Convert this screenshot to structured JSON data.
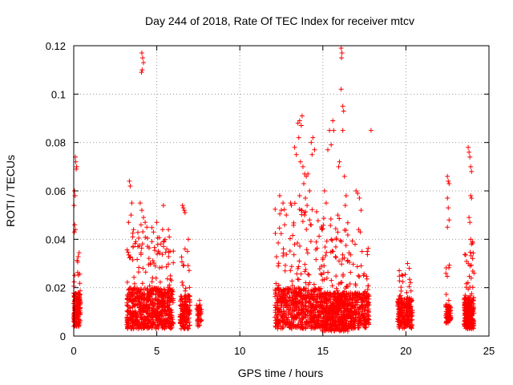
{
  "chart_data": {
    "type": "scatter",
    "title": "Day 244 of 2018, Rate Of TEC Index for receiver mtcv",
    "xlabel": "GPS time / hours",
    "ylabel": "ROTI / TECUs",
    "xlim": [
      0,
      25
    ],
    "ylim": [
      0,
      0.12
    ],
    "xticks": [
      0,
      5,
      10,
      15,
      20,
      25
    ],
    "xtick_labels": [
      "0",
      "5",
      "10",
      "15",
      "20",
      "25"
    ],
    "yticks": [
      0,
      0.02,
      0.04,
      0.06,
      0.08,
      0.1,
      0.12
    ],
    "ytick_labels": [
      "0",
      "0.02",
      "0.04",
      "0.06",
      "0.08",
      "0.1",
      "0.12"
    ],
    "grid": true,
    "marker": "+",
    "color": "#ff0000",
    "series": [
      {
        "name": "ROTI",
        "clusters": [
          {
            "start": 0.0,
            "end": 0.4,
            "count": 170,
            "base_min": 0.004,
            "base_max": 0.018,
            "scatter_max": 0.035
          },
          {
            "start": 3.2,
            "end": 6.0,
            "count": 750,
            "base_min": 0.003,
            "base_max": 0.02,
            "scatter_max": 0.045
          },
          {
            "start": 6.4,
            "end": 7.0,
            "count": 170,
            "base_min": 0.003,
            "base_max": 0.017,
            "scatter_max": 0.035
          },
          {
            "start": 7.4,
            "end": 7.7,
            "count": 45,
            "base_min": 0.004,
            "base_max": 0.013,
            "scatter_max": 0.015
          },
          {
            "start": 12.1,
            "end": 14.9,
            "count": 650,
            "base_min": 0.003,
            "base_max": 0.02,
            "scatter_max": 0.055
          },
          {
            "start": 14.9,
            "end": 16.6,
            "count": 550,
            "base_min": 0.002,
            "base_max": 0.018,
            "scatter_max": 0.05
          },
          {
            "start": 16.6,
            "end": 17.8,
            "count": 260,
            "base_min": 0.003,
            "base_max": 0.018,
            "scatter_max": 0.04
          },
          {
            "start": 19.5,
            "end": 20.4,
            "count": 230,
            "base_min": 0.003,
            "base_max": 0.016,
            "scatter_max": 0.028
          },
          {
            "start": 22.4,
            "end": 22.7,
            "count": 70,
            "base_min": 0.005,
            "base_max": 0.013,
            "scatter_max": 0.03
          },
          {
            "start": 23.5,
            "end": 24.1,
            "count": 260,
            "base_min": 0.003,
            "base_max": 0.016,
            "scatter_max": 0.04
          }
        ],
        "points": [
          [
            0.1,
            0.074
          ],
          [
            0.12,
            0.072
          ],
          [
            0.18,
            0.07
          ],
          [
            0.15,
            0.069
          ],
          [
            0.05,
            0.06
          ],
          [
            0.08,
            0.058
          ],
          [
            0.02,
            0.054
          ],
          [
            0.06,
            0.046
          ],
          [
            0.04,
            0.043
          ],
          [
            0.1,
            0.044
          ],
          [
            3.35,
            0.064
          ],
          [
            3.4,
            0.062
          ],
          [
            3.5,
            0.055
          ],
          [
            3.45,
            0.05
          ],
          [
            3.3,
            0.047
          ],
          [
            3.6,
            0.044
          ],
          [
            3.55,
            0.041
          ],
          [
            4.1,
            0.117
          ],
          [
            4.15,
            0.115
          ],
          [
            4.2,
            0.113
          ],
          [
            4.12,
            0.11
          ],
          [
            4.08,
            0.109
          ],
          [
            4.0,
            0.055
          ],
          [
            4.1,
            0.052
          ],
          [
            4.2,
            0.049
          ],
          [
            4.3,
            0.047
          ],
          [
            4.05,
            0.046
          ],
          [
            4.4,
            0.045
          ],
          [
            5.0,
            0.047
          ],
          [
            5.4,
            0.054
          ],
          [
            5.35,
            0.044
          ],
          [
            5.5,
            0.04
          ],
          [
            5.7,
            0.044
          ],
          [
            5.75,
            0.041
          ],
          [
            5.6,
            0.036
          ],
          [
            5.8,
            0.035
          ],
          [
            4.8,
            0.043
          ],
          [
            6.55,
            0.054
          ],
          [
            6.6,
            0.053
          ],
          [
            6.65,
            0.052
          ],
          [
            6.7,
            0.051
          ],
          [
            6.9,
            0.04
          ],
          [
            6.7,
            0.036
          ],
          [
            6.85,
            0.035
          ],
          [
            12.4,
            0.058
          ],
          [
            12.6,
            0.055
          ],
          [
            12.5,
            0.052
          ],
          [
            12.8,
            0.05
          ],
          [
            12.7,
            0.046
          ],
          [
            13.3,
            0.078
          ],
          [
            13.4,
            0.075
          ],
          [
            13.5,
            0.088
          ],
          [
            13.6,
            0.089
          ],
          [
            13.7,
            0.087
          ],
          [
            13.75,
            0.091
          ],
          [
            13.55,
            0.082
          ],
          [
            13.65,
            0.072
          ],
          [
            13.8,
            0.07
          ],
          [
            13.9,
            0.067
          ],
          [
            14.0,
            0.066
          ],
          [
            14.1,
            0.067
          ],
          [
            13.85,
            0.063
          ],
          [
            14.2,
            0.06
          ],
          [
            13.95,
            0.057
          ],
          [
            14.05,
            0.054
          ],
          [
            14.3,
            0.08
          ],
          [
            14.4,
            0.082
          ],
          [
            14.5,
            0.077
          ],
          [
            14.35,
            0.075
          ],
          [
            13.6,
            0.058
          ],
          [
            13.7,
            0.052
          ],
          [
            13.9,
            0.05
          ],
          [
            14.2,
            0.048
          ],
          [
            15.1,
            0.06
          ],
          [
            15.2,
            0.055
          ],
          [
            15.4,
            0.085
          ],
          [
            15.6,
            0.089
          ],
          [
            15.65,
            0.085
          ],
          [
            15.5,
            0.079
          ],
          [
            15.3,
            0.077
          ],
          [
            16.1,
            0.119
          ],
          [
            16.15,
            0.117
          ],
          [
            16.12,
            0.115
          ],
          [
            16.1,
            0.102
          ],
          [
            16.2,
            0.095
          ],
          [
            16.25,
            0.093
          ],
          [
            16.2,
            0.085
          ],
          [
            16.0,
            0.072
          ],
          [
            15.95,
            0.07
          ],
          [
            16.3,
            0.066
          ],
          [
            16.4,
            0.058
          ],
          [
            16.35,
            0.054
          ],
          [
            15.9,
            0.05
          ],
          [
            17.0,
            0.06
          ],
          [
            17.1,
            0.059
          ],
          [
            17.2,
            0.057
          ],
          [
            17.3,
            0.052
          ],
          [
            17.15,
            0.044
          ],
          [
            17.25,
            0.043
          ],
          [
            17.9,
            0.085
          ],
          [
            19.6,
            0.027
          ],
          [
            19.8,
            0.025
          ],
          [
            20.1,
            0.03
          ],
          [
            20.2,
            0.028
          ],
          [
            22.5,
            0.066
          ],
          [
            22.55,
            0.064
          ],
          [
            22.6,
            0.063
          ],
          [
            22.5,
            0.057
          ],
          [
            22.55,
            0.053
          ],
          [
            22.6,
            0.048
          ],
          [
            22.5,
            0.045
          ],
          [
            23.75,
            0.078
          ],
          [
            23.8,
            0.076
          ],
          [
            23.85,
            0.074
          ],
          [
            23.9,
            0.07
          ],
          [
            23.95,
            0.068
          ],
          [
            23.9,
            0.058
          ],
          [
            23.95,
            0.057
          ],
          [
            23.8,
            0.049
          ],
          [
            23.85,
            0.047
          ],
          [
            23.9,
            0.04
          ],
          [
            23.95,
            0.038
          ]
        ]
      }
    ]
  }
}
